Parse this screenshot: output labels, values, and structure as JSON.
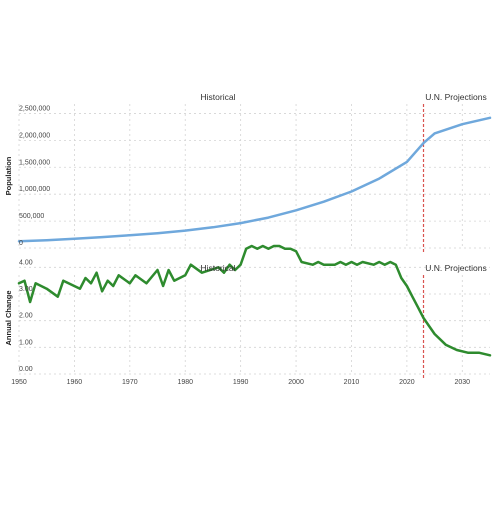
{
  "chart_data": [
    {
      "type": "line",
      "panel": "top",
      "section_labels": {
        "left": "Historical",
        "right": "U.N. Projections"
      },
      "ylabel": "Population",
      "yticks": [
        "0",
        "500,000",
        "1,000,000",
        "1,500,000",
        "2,000,000",
        "2,500,000"
      ],
      "ylim": [
        0,
        2750000
      ],
      "xlim": [
        1950,
        2035
      ],
      "projection_start": 2023,
      "grid": true,
      "series": [
        {
          "color": "#6fa8dc",
          "points": [
            [
              1950,
              125000
            ],
            [
              1955,
              145000
            ],
            [
              1960,
              172000
            ],
            [
              1965,
              203000
            ],
            [
              1970,
              237000
            ],
            [
              1975,
              275000
            ],
            [
              1980,
              323000
            ],
            [
              1985,
              384000
            ],
            [
              1990,
              462000
            ],
            [
              1995,
              565000
            ],
            [
              2000,
              700000
            ],
            [
              2005,
              860000
            ],
            [
              2010,
              1050000
            ],
            [
              2015,
              1290000
            ],
            [
              2020,
              1600000
            ],
            [
              2023,
              1950000
            ],
            [
              2025,
              2130000
            ],
            [
              2030,
              2300000
            ],
            [
              2035,
              2420000
            ]
          ]
        }
      ]
    },
    {
      "type": "line",
      "panel": "bottom",
      "section_labels": {
        "left": "Historical",
        "right": "U.N. Projections"
      },
      "ylabel": "Annual Change",
      "yticks": [
        "0.00",
        "1.00",
        "2.00",
        "3.00",
        "4.00"
      ],
      "ylim": [
        0,
        4.5
      ],
      "xticks": [
        "1950",
        "1960",
        "1970",
        "1980",
        "1990",
        "2000",
        "2010",
        "2020",
        "2030"
      ],
      "xlim": [
        1950,
        2035
      ],
      "projection_start": 2023,
      "grid": true,
      "series": [
        {
          "color": "#2e8b2e",
          "points": [
            [
              1950,
              3.4
            ],
            [
              1951,
              3.5
            ],
            [
              1952,
              2.7
            ],
            [
              1953,
              3.4
            ],
            [
              1955,
              3.2
            ],
            [
              1957,
              2.9
            ],
            [
              1958,
              3.5
            ],
            [
              1961,
              3.2
            ],
            [
              1962,
              3.6
            ],
            [
              1963,
              3.4
            ],
            [
              1964,
              3.8
            ],
            [
              1965,
              3.1
            ],
            [
              1966,
              3.5
            ],
            [
              1967,
              3.3
            ],
            [
              1968,
              3.7
            ],
            [
              1970,
              3.4
            ],
            [
              1971,
              3.7
            ],
            [
              1973,
              3.4
            ],
            [
              1975,
              3.9
            ],
            [
              1976,
              3.3
            ],
            [
              1977,
              3.9
            ],
            [
              1978,
              3.5
            ],
            [
              1980,
              3.7
            ],
            [
              1981,
              4.1
            ],
            [
              1983,
              3.8
            ],
            [
              1986,
              4.0
            ],
            [
              1987,
              3.8
            ],
            [
              1988,
              4.1
            ],
            [
              1989,
              3.9
            ],
            [
              1990,
              4.1
            ],
            [
              1991,
              4.7
            ],
            [
              1992,
              4.8
            ],
            [
              1993,
              4.7
            ],
            [
              1994,
              4.8
            ],
            [
              1995,
              4.7
            ],
            [
              1996,
              4.8
            ],
            [
              1997,
              4.8
            ],
            [
              1998,
              4.7
            ],
            [
              1999,
              4.7
            ],
            [
              2000,
              4.6
            ],
            [
              2001,
              4.2
            ],
            [
              2003,
              4.1
            ],
            [
              2004,
              4.2
            ],
            [
              2005,
              4.1
            ],
            [
              2007,
              4.1
            ],
            [
              2008,
              4.2
            ],
            [
              2009,
              4.1
            ],
            [
              2010,
              4.2
            ],
            [
              2011,
              4.1
            ],
            [
              2012,
              4.2
            ],
            [
              2014,
              4.1
            ],
            [
              2015,
              4.2
            ],
            [
              2016,
              4.1
            ],
            [
              2017,
              4.2
            ],
            [
              2018,
              4.1
            ],
            [
              2019,
              3.6
            ],
            [
              2020,
              3.3
            ],
            [
              2021,
              2.9
            ],
            [
              2022,
              2.5
            ],
            [
              2023,
              2.1
            ],
            [
              2025,
              1.5
            ],
            [
              2027,
              1.1
            ],
            [
              2029,
              0.9
            ],
            [
              2031,
              0.8
            ],
            [
              2033,
              0.8
            ],
            [
              2035,
              0.7
            ]
          ]
        }
      ]
    }
  ]
}
